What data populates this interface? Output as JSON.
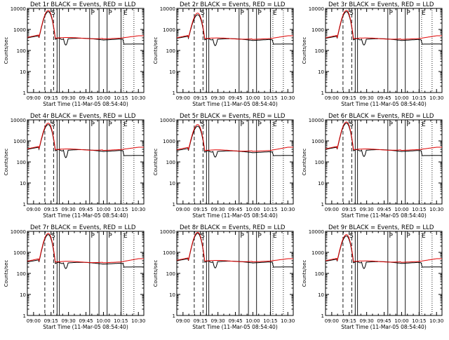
{
  "figure": {
    "background": "#ffffff",
    "axis_color": "#000000",
    "events_color": "#000000",
    "lld_color": "#e00000"
  },
  "chart_data": [
    {
      "type": "line",
      "title": "Det 1r BLACK = Events, RED = LLD",
      "xlabel": "Start Time (11-Mar-05 08:54:40)",
      "ylabel": "Counts/sec",
      "yscale": "log",
      "ylim": [
        1,
        10000
      ],
      "x_ticks": [
        "09:00",
        "09:15",
        "09:30",
        "09:45",
        "10:00",
        "10:15",
        "10:30"
      ],
      "y_ticks": [
        "1",
        "10",
        "100",
        "1000",
        "10000"
      ],
      "marker_letters": [
        "S",
        "P",
        "P",
        "E"
      ],
      "series": [
        {
          "name": "Events",
          "color": "#000000",
          "peak": 7000,
          "base": 400,
          "dip": 180,
          "end": 200
        },
        {
          "name": "LLD",
          "color": "#e00000",
          "peak": 8000,
          "base": 420,
          "dip": null,
          "end": 500
        }
      ]
    },
    {
      "type": "line",
      "title": "Det 2r BLACK = Events, RED = LLD",
      "xlabel": "Start Time (11-Mar-05 08:54:40)",
      "ylabel": "Counts/sec",
      "yscale": "log",
      "ylim": [
        1,
        10000
      ],
      "x_ticks": [
        "09:00",
        "09:15",
        "09:30",
        "09:45",
        "10:00",
        "10:15",
        "10:30"
      ],
      "y_ticks": [
        "1",
        "10",
        "100",
        "1000",
        "10000"
      ],
      "marker_letters": [
        "S",
        "P",
        "P",
        "E"
      ],
      "series": [
        {
          "name": "Events",
          "color": "#000000",
          "peak": 5000,
          "base": 380,
          "dip": 170,
          "end": 200
        },
        {
          "name": "LLD",
          "color": "#e00000",
          "peak": 6000,
          "base": 400,
          "dip": null,
          "end": 500
        }
      ]
    },
    {
      "type": "line",
      "title": "Det 3r BLACK = Events, RED = LLD",
      "xlabel": "Start Time (11-Mar-05 08:54:40)",
      "ylabel": "Counts/sec",
      "yscale": "log",
      "ylim": [
        1,
        10000
      ],
      "x_ticks": [
        "09:00",
        "09:15",
        "09:30",
        "09:45",
        "10:00",
        "10:15",
        "10:30"
      ],
      "y_ticks": [
        "1",
        "10",
        "100",
        "1000",
        "10000"
      ],
      "marker_letters": [
        "S",
        "P",
        "P",
        "E"
      ],
      "series": [
        {
          "name": "Events",
          "color": "#000000",
          "peak": 7000,
          "base": 380,
          "dip": 180,
          "end": 200
        },
        {
          "name": "LLD",
          "color": "#e00000",
          "peak": 8000,
          "base": 400,
          "dip": null,
          "end": 500
        }
      ]
    },
    {
      "type": "line",
      "title": "Det 4r BLACK = Events, RED = LLD",
      "xlabel": "Start Time (11-Mar-05 08:54:40)",
      "ylabel": "Counts/sec",
      "yscale": "log",
      "ylim": [
        1,
        10000
      ],
      "x_ticks": [
        "09:00",
        "09:15",
        "09:30",
        "09:45",
        "10:00",
        "10:15",
        "10:30"
      ],
      "y_ticks": [
        "1",
        "10",
        "100",
        "1000",
        "10000"
      ],
      "marker_letters": [
        "S",
        "P",
        "P",
        "E"
      ],
      "series": [
        {
          "name": "Events",
          "color": "#000000",
          "peak": 6000,
          "base": 400,
          "dip": 160,
          "end": 200
        },
        {
          "name": "LLD",
          "color": "#e00000",
          "peak": 7000,
          "base": 420,
          "dip": null,
          "end": 500
        }
      ]
    },
    {
      "type": "line",
      "title": "Det 5r BLACK = Events, RED = LLD",
      "xlabel": "Start Time (11-Mar-05 08:54:40)",
      "ylabel": "Counts/sec",
      "yscale": "log",
      "ylim": [
        1,
        10000
      ],
      "x_ticks": [
        "09:00",
        "09:15",
        "09:30",
        "09:45",
        "10:00",
        "10:15",
        "10:30"
      ],
      "y_ticks": [
        "1",
        "10",
        "100",
        "1000",
        "10000"
      ],
      "marker_letters": [
        "S",
        "P",
        "P",
        "E"
      ],
      "series": [
        {
          "name": "Events",
          "color": "#000000",
          "peak": 5000,
          "base": 350,
          "dip": 170,
          "end": 200
        },
        {
          "name": "LLD",
          "color": "#e00000",
          "peak": 6000,
          "base": 380,
          "dip": null,
          "end": 500
        }
      ]
    },
    {
      "type": "line",
      "title": "Det 6r BLACK = Events, RED = LLD",
      "xlabel": "Start Time (11-Mar-05 08:54:40)",
      "ylabel": "Counts/sec",
      "yscale": "log",
      "ylim": [
        1,
        10000
      ],
      "x_ticks": [
        "09:00",
        "09:15",
        "09:30",
        "09:45",
        "10:00",
        "10:15",
        "10:30"
      ],
      "y_ticks": [
        "1",
        "10",
        "100",
        "1000",
        "10000"
      ],
      "marker_letters": [
        "S",
        "P",
        "P",
        "E"
      ],
      "series": [
        {
          "name": "Events",
          "color": "#000000",
          "peak": 7000,
          "base": 400,
          "dip": 180,
          "end": 200
        },
        {
          "name": "LLD",
          "color": "#e00000",
          "peak": 8000,
          "base": 420,
          "dip": null,
          "end": 500
        }
      ]
    },
    {
      "type": "line",
      "title": "Det 7r BLACK = Events, RED = LLD",
      "xlabel": "Start Time (11-Mar-05 08:54:40)",
      "ylabel": "Counts/sec",
      "yscale": "log",
      "ylim": [
        1,
        10000
      ],
      "x_ticks": [
        "09:00",
        "09:15",
        "09:30",
        "09:45",
        "10:00",
        "10:15",
        "10:30"
      ],
      "y_ticks": [
        "1",
        "10",
        "100",
        "1000",
        "10000"
      ],
      "marker_letters": [
        "S",
        "P",
        "P",
        "E"
      ],
      "series": [
        {
          "name": "Events",
          "color": "#000000",
          "peak": 7000,
          "base": 350,
          "dip": 170,
          "end": 200
        },
        {
          "name": "LLD",
          "color": "#e00000",
          "peak": 8000,
          "base": 380,
          "dip": null,
          "end": 500
        }
      ]
    },
    {
      "type": "line",
      "title": "Det 8r BLACK = Events, RED = LLD",
      "xlabel": "Start Time (11-Mar-05 08:54:40)",
      "ylabel": "Counts/sec",
      "yscale": "log",
      "ylim": [
        1,
        10000
      ],
      "x_ticks": [
        "09:00",
        "09:15",
        "09:30",
        "09:45",
        "10:00",
        "10:15",
        "10:30"
      ],
      "y_ticks": [
        "1",
        "10",
        "100",
        "1000",
        "10000"
      ],
      "marker_letters": [
        "S",
        "P",
        "P",
        "E"
      ],
      "series": [
        {
          "name": "Events",
          "color": "#000000",
          "peak": 8000,
          "base": 400,
          "dip": 180,
          "end": 200
        },
        {
          "name": "LLD",
          "color": "#e00000",
          "peak": 9000,
          "base": 420,
          "dip": null,
          "end": 500
        }
      ]
    },
    {
      "type": "line",
      "title": "Det 9r BLACK = Events, RED = LLD",
      "xlabel": "Start Time (11-Mar-05 08:54:40)",
      "ylabel": "Counts/sec",
      "yscale": "log",
      "ylim": [
        1,
        10000
      ],
      "x_ticks": [
        "09:00",
        "09:15",
        "09:30",
        "09:45",
        "10:00",
        "10:15",
        "10:30"
      ],
      "y_ticks": [
        "1",
        "10",
        "100",
        "1000",
        "10000"
      ],
      "marker_letters": [
        "S",
        "P",
        "P",
        "E"
      ],
      "series": [
        {
          "name": "Events",
          "color": "#000000",
          "peak": 6000,
          "base": 380,
          "dip": 170,
          "end": 200
        },
        {
          "name": "LLD",
          "color": "#e00000",
          "peak": 7000,
          "base": 400,
          "dip": null,
          "end": 500
        }
      ]
    }
  ]
}
